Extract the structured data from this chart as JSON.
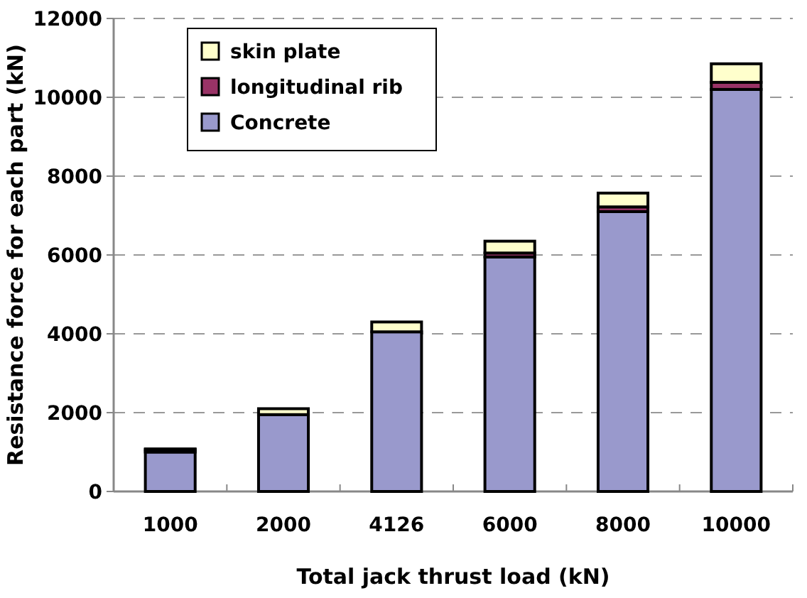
{
  "chart_data": {
    "type": "bar",
    "stacked": true,
    "xlabel": "Total jack thrust load (kN)",
    "ylabel": "Resistance force for each part (kN)",
    "categories": [
      "1000",
      "2000",
      "4126",
      "6000",
      "8000",
      "10000"
    ],
    "series": [
      {
        "name": "Concrete",
        "color": "#9999cc",
        "values": [
          1000,
          1950,
          4050,
          5950,
          7100,
          10200
        ]
      },
      {
        "name": "longitudinal rib",
        "color": "#993366",
        "values": [
          60,
          null,
          null,
          100,
          120,
          180
        ]
      },
      {
        "name": "skin plate",
        "color": "#ffffcc",
        "values": [
          20,
          150,
          250,
          300,
          350,
          470
        ]
      }
    ],
    "ylim": [
      0,
      12000
    ],
    "yticks": [
      0,
      2000,
      4000,
      6000,
      8000,
      10000,
      12000
    ],
    "grid": "y",
    "legend": "top left"
  }
}
